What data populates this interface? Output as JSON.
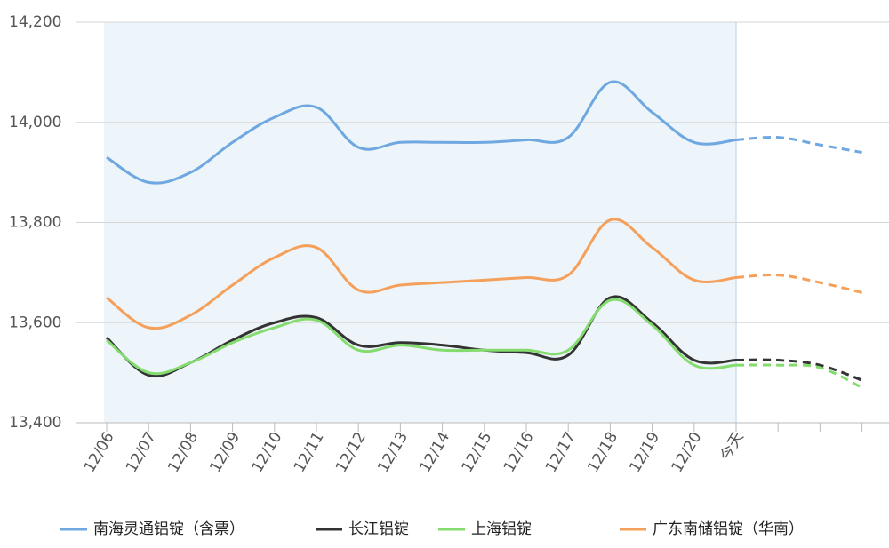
{
  "chart_data": {
    "type": "line",
    "categories": [
      "12/06",
      "12/07",
      "12/08",
      "12/09",
      "12/10",
      "12/11",
      "12/12",
      "12/13",
      "12/14",
      "12/15",
      "12/16",
      "12/17",
      "12/18",
      "12/19",
      "12/20",
      "今天",
      null,
      null,
      null
    ],
    "series": [
      {
        "name": "南海灵通铝锭（含票）",
        "color": "#6fa8e0",
        "values": [
          13930,
          13880,
          13900,
          13960,
          14010,
          14030,
          13950,
          13960,
          13960,
          13960,
          13965,
          13970,
          14080,
          14020,
          13960,
          13965,
          13970,
          13955,
          13940
        ]
      },
      {
        "name": "长江铝锭",
        "color": "#333333",
        "values": [
          13570,
          13495,
          13520,
          13565,
          13600,
          13610,
          13555,
          13560,
          13555,
          13545,
          13540,
          13535,
          13650,
          13600,
          13525,
          13525,
          13525,
          13515,
          13485
        ]
      },
      {
        "name": "上海铝锭",
        "color": "#84dc6e",
        "values": [
          13565,
          13500,
          13520,
          13560,
          13590,
          13605,
          13545,
          13555,
          13545,
          13545,
          13545,
          13545,
          13645,
          13595,
          13515,
          13515,
          13515,
          13510,
          13470
        ]
      },
      {
        "name": "广东南储铝锭（华南）",
        "color": "#f5a05a",
        "values": [
          13650,
          13590,
          13615,
          13675,
          13730,
          13750,
          13665,
          13675,
          13680,
          13685,
          13690,
          13695,
          13805,
          13750,
          13685,
          13690,
          13695,
          13680,
          13660
        ]
      }
    ],
    "ylim": [
      13400,
      14200
    ],
    "yticks": [
      {
        "value": 13400,
        "label": "13,400"
      },
      {
        "value": 13600,
        "label": "13,600"
      },
      {
        "value": 13800,
        "label": "13,800"
      },
      {
        "value": 14000,
        "label": "14,000"
      },
      {
        "value": 14200,
        "label": "14,200"
      }
    ],
    "grid": true,
    "forecast_from": 15,
    "legend": "bottom"
  }
}
